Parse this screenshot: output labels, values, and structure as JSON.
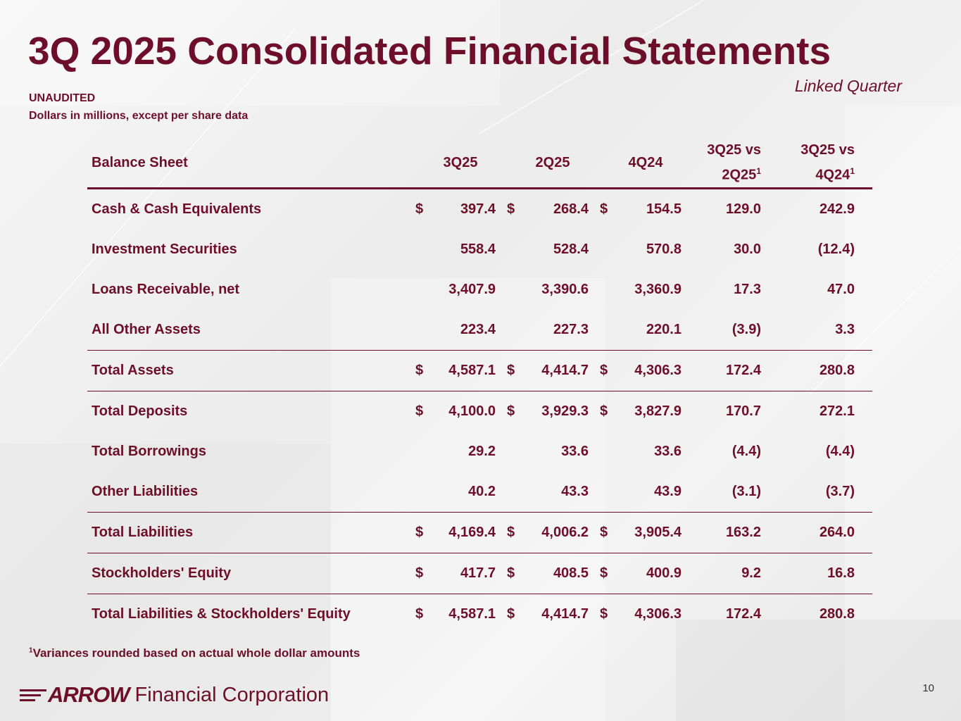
{
  "title": "3Q 2025 Consolidated Financial Statements",
  "subtitle_right": "Linked Quarter",
  "notes": {
    "line1": "UNAUDITED",
    "line2": "Dollars in millions, except per share data"
  },
  "table": {
    "header": {
      "label": "Balance Sheet",
      "col1": "3Q25",
      "col2": "2Q25",
      "col3": "4Q24",
      "var1_line1": "3Q25 vs",
      "var1_line2": "2Q25",
      "var2_line1": "3Q25 vs",
      "var2_line2": "4Q24",
      "footnote_mark": "1"
    },
    "rows": [
      {
        "label": "Cash & Cash Equivalents",
        "d1": "$",
        "v1": "397.4",
        "d2": "$",
        "v2": "268.4",
        "d3": "$",
        "v3": "154.5",
        "var1": "129.0",
        "var2": "242.9"
      },
      {
        "label": "Investment Securities",
        "d1": "",
        "v1": "558.4",
        "d2": "",
        "v2": "528.4",
        "d3": "",
        "v3": "570.8",
        "var1": "30.0",
        "var2": "(12.4)"
      },
      {
        "label": "Loans Receivable, net",
        "d1": "",
        "v1": "3,407.9",
        "d2": "",
        "v2": "3,390.6",
        "d3": "",
        "v3": "3,360.9",
        "var1": "17.3",
        "var2": "47.0"
      },
      {
        "label": "All Other Assets",
        "d1": "",
        "v1": "223.4",
        "d2": "",
        "v2": "227.3",
        "d3": "",
        "v3": "220.1",
        "var1": "(3.9)",
        "var2": "3.3"
      },
      {
        "label": "Total Assets",
        "d1": "$",
        "v1": "4,587.1",
        "d2": "$",
        "v2": "4,414.7",
        "d3": "$",
        "v3": "4,306.3",
        "var1": "172.4",
        "var2": "280.8"
      },
      {
        "label": "Total Deposits",
        "d1": "$",
        "v1": "4,100.0",
        "d2": "$",
        "v2": "3,929.3",
        "d3": "$",
        "v3": "3,827.9",
        "var1": "170.7",
        "var2": "272.1"
      },
      {
        "label": "Total Borrowings",
        "d1": "",
        "v1": "29.2",
        "d2": "",
        "v2": "33.6",
        "d3": "",
        "v3": "33.6",
        "var1": "(4.4)",
        "var2": "(4.4)"
      },
      {
        "label": "Other Liabilities",
        "d1": "",
        "v1": "40.2",
        "d2": "",
        "v2": "43.3",
        "d3": "",
        "v3": "43.9",
        "var1": "(3.1)",
        "var2": "(3.7)"
      },
      {
        "label": "Total Liabilities",
        "d1": "$",
        "v1": "4,169.4",
        "d2": "$",
        "v2": "4,006.2",
        "d3": "$",
        "v3": "3,905.4",
        "var1": "163.2",
        "var2": "264.0"
      },
      {
        "label": "Stockholders' Equity",
        "d1": "$",
        "v1": "417.7",
        "d2": "$",
        "v2": "408.5",
        "d3": "$",
        "v3": "400.9",
        "var1": "9.2",
        "var2": "16.8"
      },
      {
        "label": "Total Liabilities & Stockholders' Equity",
        "d1": "$",
        "v1": "4,587.1",
        "d2": "$",
        "v2": "4,414.7",
        "d3": "$",
        "v3": "4,306.3",
        "var1": "172.4",
        "var2": "280.8"
      }
    ]
  },
  "footnote": {
    "mark": "1",
    "text": "Variances rounded based on actual whole dollar amounts"
  },
  "logo": {
    "brand": "ARROW",
    "rest": "Financial Corporation"
  },
  "page_number": "10",
  "colors": {
    "brand": "#6d0f2b"
  }
}
